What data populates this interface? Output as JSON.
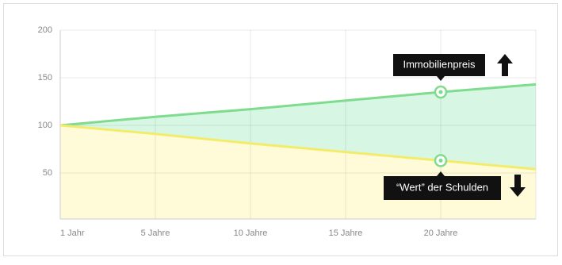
{
  "chart_data": {
    "type": "line",
    "categories": [
      "1 Jahr",
      "5 Jahre",
      "10 Jahre",
      "15 Jahre",
      "20 Jahre",
      null
    ],
    "series": [
      {
        "name": "Immobilienpreis",
        "color": "#7fdc8f",
        "values": [
          100,
          109,
          117,
          126,
          135,
          143
        ]
      },
      {
        "name": "“Wert” der Schulden",
        "color": "#f3ec6b",
        "values": [
          100,
          91,
          81,
          72,
          63,
          54
        ]
      }
    ],
    "ylim": [
      0,
      200
    ],
    "yticks": [
      50,
      100,
      150,
      200
    ],
    "grid": true
  }
}
